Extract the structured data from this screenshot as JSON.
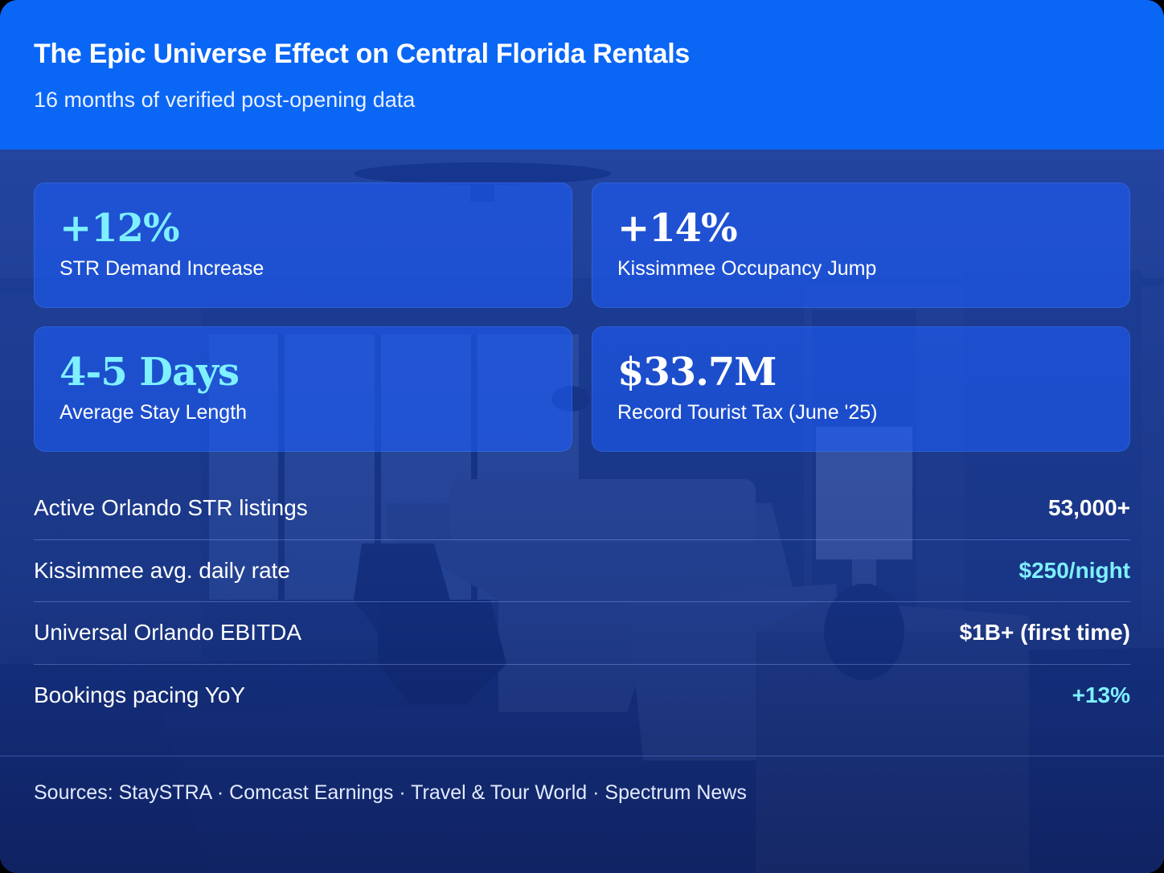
{
  "header": {
    "title": "The Epic Universe Effect on Central Florida Rentals",
    "subtitle": "16 months of verified post-opening data"
  },
  "stats": [
    {
      "value": "+12%",
      "label": "STR Demand Increase"
    },
    {
      "value": "+14%",
      "label": "Kissimmee Occupancy Jump"
    },
    {
      "value": "4-5 Days",
      "label": "Average Stay Length"
    },
    {
      "value": "$33.7M",
      "label": "Record Tourist Tax (June '25)"
    }
  ],
  "rows": [
    {
      "label": "Active Orlando STR listings",
      "value": "53,000+"
    },
    {
      "label": "Kissimmee avg. daily rate",
      "value": "$250/night"
    },
    {
      "label": "Universal Orlando EBITDA",
      "value": "$1B+ (first time)"
    },
    {
      "label": "Bookings pacing YoY",
      "value": "+13%"
    }
  ],
  "footer": {
    "sources": "Sources: StaySTRA · Comcast Earnings · Travel & Tour World · Spectrum News"
  },
  "colors": {
    "header_bg": "#0a66f5",
    "accent_cyan": "#7ef0ff",
    "panel_bg": "#1e5fff",
    "text": "#ffffff"
  }
}
